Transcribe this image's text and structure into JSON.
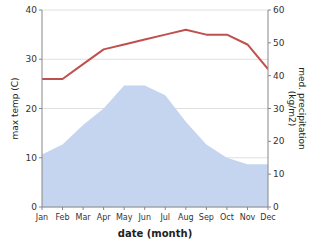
{
  "chart_data": {
    "type": "line",
    "xlabel": "date (month)",
    "ylabel": "max temp (C)",
    "y2label": "med. precipitation\n(kg/m2)",
    "categories": [
      "Jan",
      "Feb",
      "Mar",
      "Apr",
      "May",
      "Jun",
      "Jul",
      "Aug",
      "Sep",
      "Oct",
      "Nov",
      "Dec"
    ],
    "series": [
      {
        "type": "area",
        "axis": "y2",
        "color": "#c5d5f0",
        "values": [
          16,
          19,
          25,
          30,
          37,
          37,
          34,
          26,
          19,
          15,
          13,
          13
        ]
      },
      {
        "type": "line",
        "color": "#c0504d",
        "values": [
          26,
          26,
          29,
          32,
          33,
          34,
          35,
          36,
          35,
          35,
          33,
          28
        ]
      }
    ],
    "ylim": [
      0,
      40
    ],
    "yticks": [
      0,
      10,
      20,
      30,
      40
    ],
    "y2lim": [
      0,
      60
    ],
    "y2ticks": [
      0,
      10,
      20,
      30,
      40,
      50,
      60
    ],
    "grid": true
  }
}
